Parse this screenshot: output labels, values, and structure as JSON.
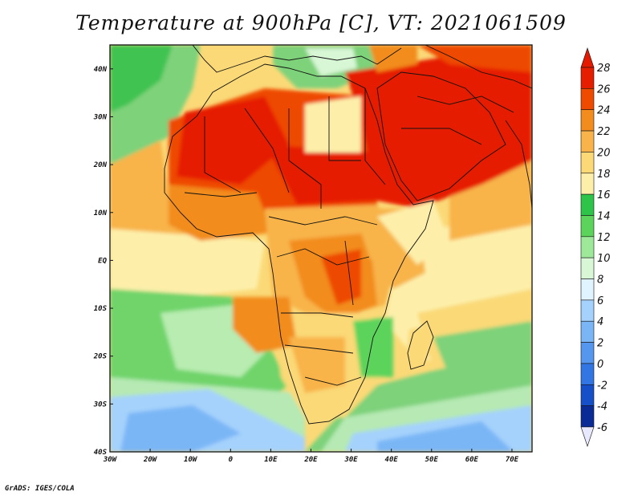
{
  "title": "Temperature at 900hPa [C], VT: 2021061509",
  "credit": "GrADS: IGES/COLA",
  "lat_labels": [
    "40N",
    "30N",
    "20N",
    "10N",
    "EQ",
    "10S",
    "20S",
    "30S",
    "40S"
  ],
  "lon_labels": [
    "30W",
    "20W",
    "10W",
    "0",
    "10E",
    "20E",
    "30E",
    "40E",
    "50E",
    "60E",
    "70E"
  ],
  "lat_values": [
    40,
    30,
    20,
    10,
    0,
    -10,
    -20,
    -30,
    -40
  ],
  "lon_values": [
    -30,
    -20,
    -10,
    0,
    10,
    20,
    30,
    40,
    50,
    60,
    70
  ],
  "map_extent": {
    "lon_min": -30,
    "lon_max": 75,
    "lat_min": -40,
    "lat_max": 45
  },
  "colorbar": {
    "levels": [
      "28",
      "26",
      "24",
      "22",
      "20",
      "18",
      "16",
      "14",
      "12",
      "10",
      "8",
      "6",
      "4",
      "2",
      "0",
      "-2",
      "-4",
      "-6"
    ],
    "colors": [
      "#e61e00",
      "#ee4a00",
      "#f28c1e",
      "#f8b44a",
      "#fbd977",
      "#fdefaa",
      "#2ec44a",
      "#5cd45c",
      "#9ee89a",
      "#d8f7d5",
      "#dff4ff",
      "#a4d2fc",
      "#7ab6f6",
      "#5596ee",
      "#3176e2",
      "#1550c8",
      "#0a2a96"
    ],
    "top_color": "#e31a00",
    "bottom_color": "#e8e8ff"
  }
}
